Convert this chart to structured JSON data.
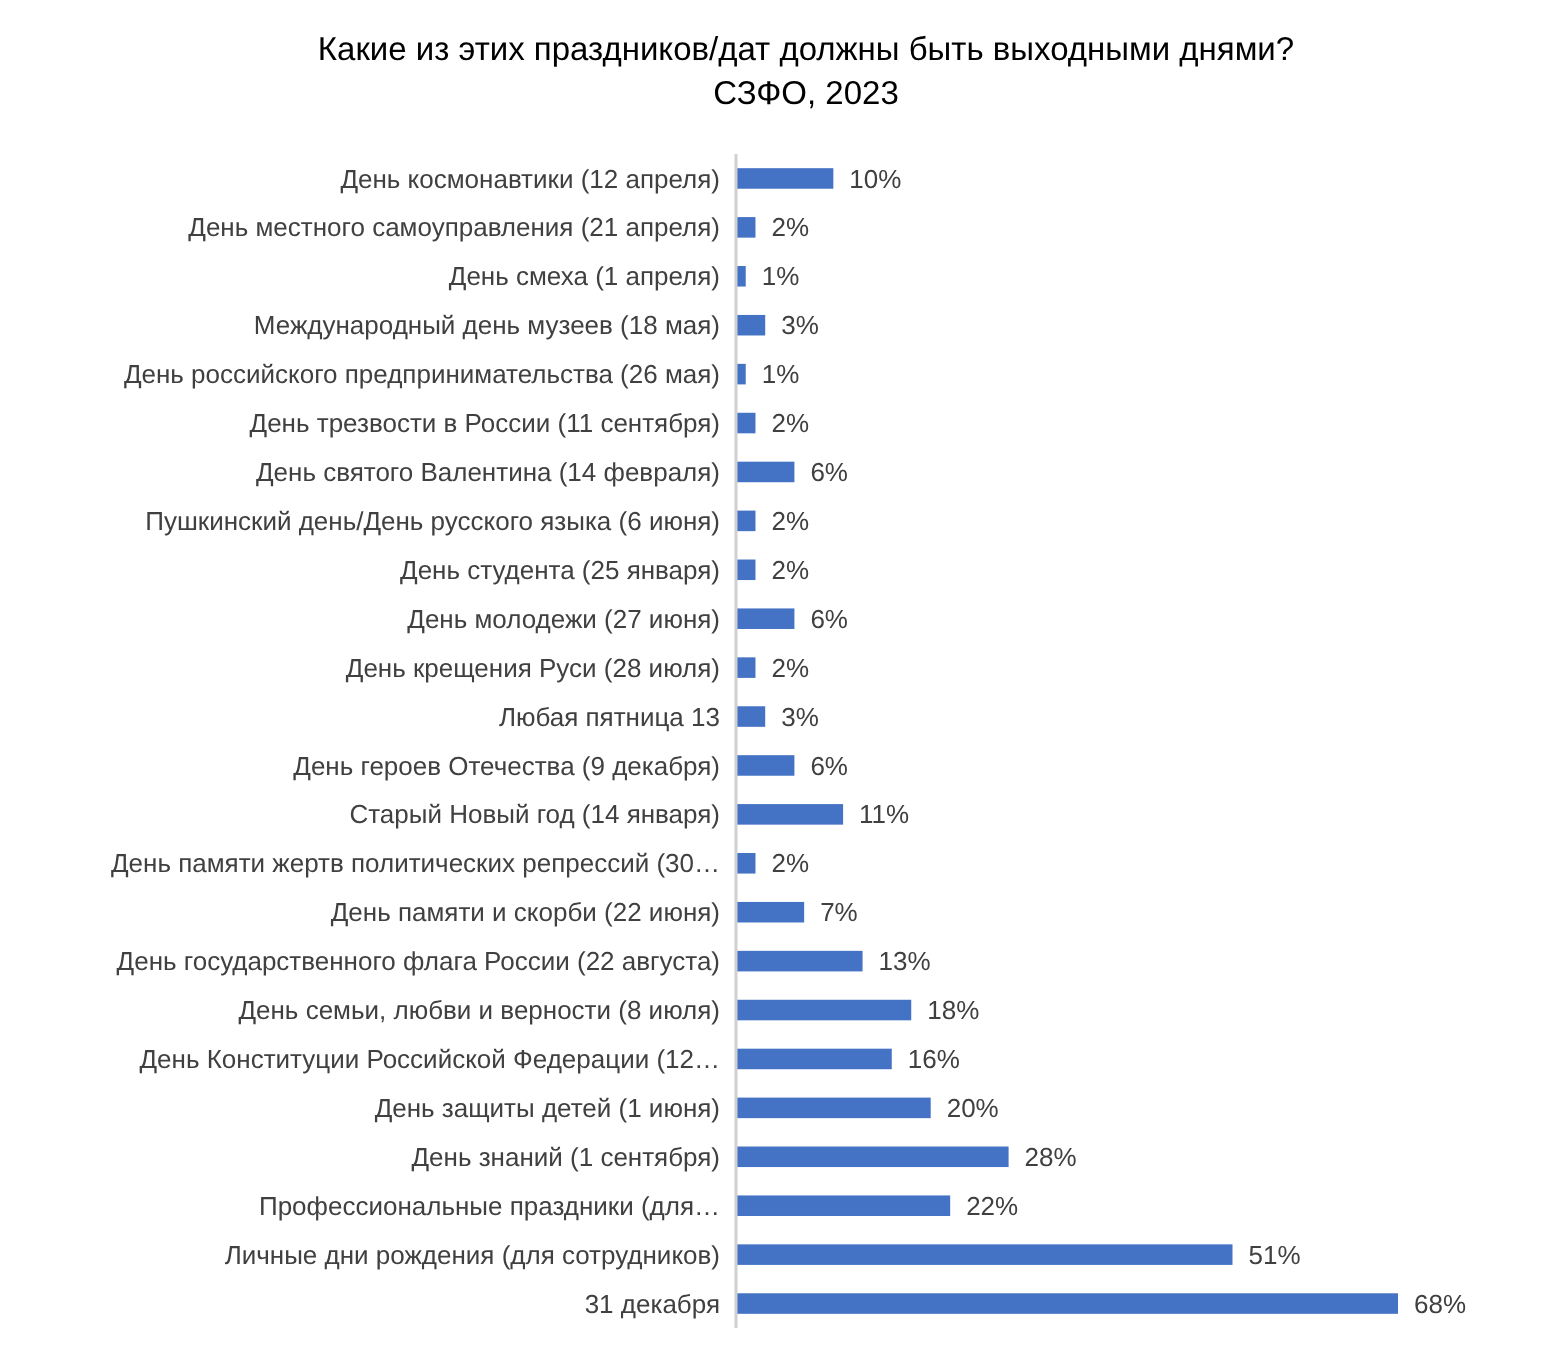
{
  "chart_data": {
    "type": "bar",
    "orientation": "horizontal",
    "title": "Какие из этих праздников/дат должны быть выходными днями? СЗФО, 2023",
    "categories": [
      "День космонавтики (12 апреля)",
      "День местного самоуправления (21 апреля)",
      "День смеха (1 апреля)",
      "Международный день музеев (18 мая)",
      "День российского предпринимательства (26 мая)",
      "День трезвости в России (11 сентября)",
      "День святого Валентина (14 февраля)",
      "Пушкинский день/День русского языка (6 июня)",
      "День студента (25 января)",
      "День молодежи (27 июня)",
      "День крещения Руси (28 июля)",
      "Любая пятница 13",
      "День героев Отечества (9 декабря)",
      "Старый Новый год (14 января)",
      "День памяти жертв политических репрессий (30…",
      "День памяти и скорби (22 июня)",
      "День государственного флага России (22 августа)",
      "День семьи, любви и верности (8 июля)",
      "День Конституции Российской Федерации (12…",
      "День защиты детей (1 июня)",
      "День знаний (1 сентября)",
      "Профессиональные праздники (для…",
      "Личные дни рождения (для сотрудников)",
      "31 декабря"
    ],
    "values": [
      10,
      2,
      1,
      3,
      1,
      2,
      6,
      2,
      2,
      6,
      2,
      3,
      6,
      11,
      2,
      7,
      13,
      18,
      16,
      20,
      28,
      22,
      51,
      68
    ],
    "value_labels": [
      "10%",
      "2%",
      "1%",
      "3%",
      "1%",
      "2%",
      "6%",
      "2%",
      "2%",
      "6%",
      "2%",
      "3%",
      "6%",
      "11%",
      "2%",
      "7%",
      "13%",
      "18%",
      "16%",
      "20%",
      "28%",
      "22%",
      "51%",
      "68%"
    ],
    "color": "#4472c4"
  }
}
